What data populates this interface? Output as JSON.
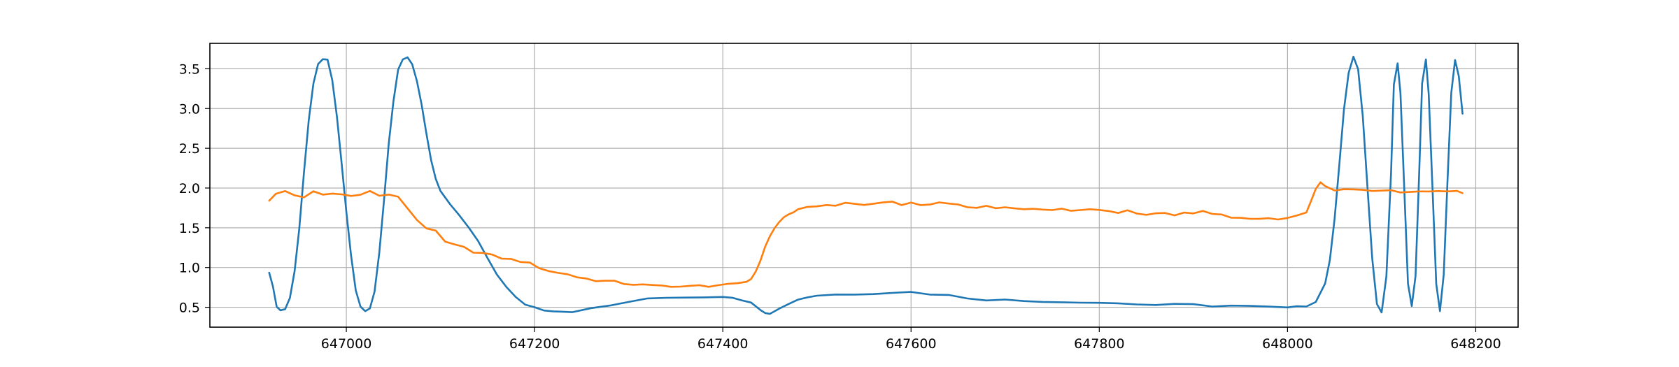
{
  "chart_data": {
    "type": "line",
    "title": "",
    "xlabel": "",
    "ylabel": "",
    "xlim": [
      646855,
      648245
    ],
    "ylim": [
      0.25,
      3.82
    ],
    "grid": true,
    "legend": "none",
    "x_ticks": [
      647000,
      647200,
      647400,
      647600,
      647800,
      648000,
      648200
    ],
    "y_ticks": [
      0.5,
      1.0,
      1.5,
      2.0,
      2.5,
      3.0,
      3.5
    ],
    "x_tick_labels": [
      "647000",
      "647200",
      "647400",
      "647600",
      "647800",
      "648000",
      "648200"
    ],
    "y_tick_labels": [
      "0.5",
      "1.0",
      "1.5",
      "2.0",
      "2.5",
      "3.0",
      "3.5"
    ],
    "series": [
      {
        "color": "#1f77b4",
        "x": [
          646918,
          646922,
          646926,
          646930,
          646935,
          646940,
          646945,
          646950,
          646955,
          646960,
          646965,
          646970,
          646975,
          646980,
          646985,
          646990,
          646995,
          647000,
          647005,
          647010,
          647015,
          647020,
          647025,
          647030,
          647035,
          647040,
          647045,
          647050,
          647055,
          647060,
          647065,
          647070,
          647075,
          647080,
          647085,
          647090,
          647095,
          647100,
          647110,
          647120,
          647130,
          647140,
          647150,
          647160,
          647170,
          647180,
          647190,
          647200,
          647210,
          647220,
          647230,
          647240,
          647260,
          647280,
          647300,
          647320,
          647340,
          647360,
          647380,
          647400,
          647410,
          647420,
          647430,
          647440,
          647445,
          647450,
          647460,
          647470,
          647480,
          647490,
          647500,
          647520,
          647540,
          647560,
          647580,
          647600,
          647620,
          647640,
          647660,
          647680,
          647700,
          647720,
          647740,
          647760,
          647780,
          647800,
          647820,
          647840,
          647860,
          647880,
          647900,
          647920,
          647940,
          647960,
          647980,
          648000,
          648010,
          648020,
          648030,
          648040,
          648045,
          648050,
          648055,
          648060,
          648065,
          648070,
          648075,
          648080,
          648085,
          648090,
          648095,
          648100,
          648105,
          648110,
          648113,
          648117,
          648120,
          648124,
          648128,
          648132,
          648136,
          648140,
          648143,
          648147,
          648150,
          648154,
          648158,
          648162,
          648166,
          648170,
          648174,
          648178,
          648182,
          648186
        ],
        "y": [
          0.95,
          0.75,
          0.52,
          0.46,
          0.48,
          0.62,
          0.95,
          1.5,
          2.2,
          2.85,
          3.3,
          3.55,
          3.63,
          3.6,
          3.35,
          2.9,
          2.3,
          1.7,
          1.15,
          0.72,
          0.5,
          0.45,
          0.48,
          0.7,
          1.2,
          1.85,
          2.55,
          3.1,
          3.5,
          3.62,
          3.63,
          3.55,
          3.35,
          3.05,
          2.7,
          2.35,
          2.1,
          1.95,
          1.8,
          1.65,
          1.5,
          1.32,
          1.12,
          0.92,
          0.75,
          0.62,
          0.54,
          0.5,
          0.47,
          0.46,
          0.45,
          0.45,
          0.48,
          0.52,
          0.57,
          0.6,
          0.62,
          0.63,
          0.63,
          0.64,
          0.63,
          0.6,
          0.55,
          0.48,
          0.44,
          0.43,
          0.48,
          0.55,
          0.6,
          0.63,
          0.65,
          0.66,
          0.67,
          0.68,
          0.69,
          0.69,
          0.67,
          0.65,
          0.62,
          0.6,
          0.59,
          0.58,
          0.58,
          0.57,
          0.57,
          0.56,
          0.55,
          0.54,
          0.53,
          0.53,
          0.53,
          0.52,
          0.52,
          0.51,
          0.5,
          0.49,
          0.5,
          0.52,
          0.58,
          0.8,
          1.1,
          1.6,
          2.3,
          3.0,
          3.45,
          3.64,
          3.5,
          2.9,
          2.0,
          1.1,
          0.55,
          0.43,
          0.9,
          2.2,
          3.3,
          3.57,
          3.2,
          2.0,
          0.8,
          0.5,
          0.9,
          2.2,
          3.3,
          3.63,
          3.2,
          2.0,
          0.8,
          0.46,
          0.9,
          2.1,
          3.2,
          3.6,
          3.4,
          2.95
        ]
      },
      {
        "color": "#ff7f0e",
        "x": [
          646918,
          646925,
          646935,
          646945,
          646955,
          646965,
          646975,
          646985,
          646995,
          647005,
          647015,
          647025,
          647035,
          647045,
          647055,
          647065,
          647075,
          647085,
          647095,
          647105,
          647115,
          647125,
          647135,
          647145,
          647155,
          647165,
          647175,
          647185,
          647195,
          647205,
          647215,
          647225,
          647235,
          647245,
          647255,
          647265,
          647275,
          647285,
          647295,
          647305,
          647315,
          647325,
          647335,
          647345,
          647355,
          647365,
          647375,
          647385,
          647395,
          647405,
          647415,
          647425,
          647430,
          647435,
          647440,
          647445,
          647450,
          647455,
          647460,
          647465,
          647470,
          647475,
          647480,
          647490,
          647500,
          647510,
          647520,
          647530,
          647540,
          647550,
          647560,
          647570,
          647580,
          647590,
          647600,
          647610,
          647620,
          647630,
          647640,
          647650,
          647660,
          647670,
          647680,
          647690,
          647700,
          647710,
          647720,
          647730,
          647740,
          647750,
          647760,
          647770,
          647780,
          647790,
          647800,
          647810,
          647820,
          647830,
          647840,
          647850,
          647860,
          647870,
          647880,
          647890,
          647900,
          647910,
          647920,
          647930,
          647940,
          647950,
          647960,
          647970,
          647980,
          647990,
          648000,
          648010,
          648020,
          648025,
          648030,
          648035,
          648040,
          648050,
          648060,
          648070,
          648080,
          648090,
          648100,
          648110,
          648120,
          648130,
          648140,
          648150,
          648160,
          648170,
          648180,
          648186
        ],
        "y": [
          1.85,
          1.92,
          1.96,
          1.91,
          1.89,
          1.95,
          1.91,
          1.93,
          1.92,
          1.9,
          1.93,
          1.96,
          1.9,
          1.92,
          1.88,
          1.75,
          1.6,
          1.5,
          1.45,
          1.32,
          1.28,
          1.25,
          1.2,
          1.18,
          1.15,
          1.12,
          1.1,
          1.08,
          1.05,
          1.0,
          0.96,
          0.93,
          0.92,
          0.88,
          0.86,
          0.84,
          0.83,
          0.82,
          0.8,
          0.79,
          0.78,
          0.77,
          0.77,
          0.77,
          0.76,
          0.76,
          0.77,
          0.77,
          0.78,
          0.78,
          0.79,
          0.82,
          0.86,
          0.95,
          1.1,
          1.25,
          1.4,
          1.5,
          1.57,
          1.63,
          1.67,
          1.7,
          1.72,
          1.75,
          1.78,
          1.78,
          1.79,
          1.8,
          1.8,
          1.79,
          1.8,
          1.82,
          1.83,
          1.8,
          1.81,
          1.79,
          1.8,
          1.81,
          1.79,
          1.8,
          1.77,
          1.75,
          1.78,
          1.74,
          1.75,
          1.74,
          1.73,
          1.75,
          1.73,
          1.72,
          1.75,
          1.72,
          1.71,
          1.73,
          1.72,
          1.7,
          1.69,
          1.71,
          1.68,
          1.67,
          1.68,
          1.7,
          1.66,
          1.68,
          1.69,
          1.7,
          1.67,
          1.66,
          1.64,
          1.62,
          1.6,
          1.61,
          1.62,
          1.6,
          1.62,
          1.64,
          1.68,
          1.85,
          1.98,
          2.06,
          2.03,
          1.98,
          1.97,
          1.98,
          1.97,
          1.96,
          1.96,
          1.97,
          1.95,
          1.96,
          1.97,
          1.96,
          1.95,
          1.96,
          1.97,
          1.95
        ]
      }
    ]
  }
}
